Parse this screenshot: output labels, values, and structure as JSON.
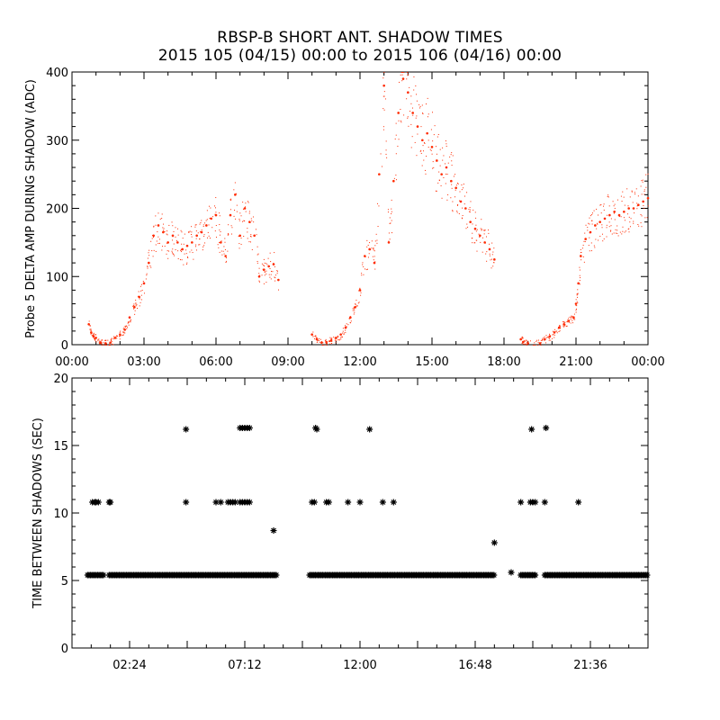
{
  "title": "RBSP-B SHORT ANT. SHADOW TIMES",
  "subtitle": "2015 105 (04/15) 00:00 to 2015 106 (04/16) 00:00",
  "colors": {
    "upper_points": "#ff2a00",
    "lower_points": "#000000"
  },
  "chart_data": [
    {
      "type": "scatter",
      "ylabel": "Probe 5 DELTA AMP DURING SHADOW (ADC)",
      "xlabel": "",
      "x_unit": "hours",
      "xlim": [
        0,
        24
      ],
      "ylim": [
        0,
        400
      ],
      "xtick_labels": [
        "00:00",
        "03:00",
        "06:00",
        "09:00",
        "12:00",
        "15:00",
        "18:00",
        "21:00",
        "00:00"
      ],
      "ytick_labels": [
        "0",
        "100",
        "200",
        "300",
        "400"
      ],
      "series": [
        {
          "points": [
            [
              0.7,
              30
            ],
            [
              0.8,
              18
            ],
            [
              0.9,
              12
            ],
            [
              1.0,
              10
            ],
            [
              1.2,
              3
            ],
            [
              1.4,
              2
            ],
            [
              1.6,
              3
            ],
            [
              1.8,
              10
            ],
            [
              2.0,
              15
            ],
            [
              2.2,
              22
            ],
            [
              2.4,
              40
            ],
            [
              2.6,
              55
            ],
            [
              2.8,
              70
            ],
            [
              3.0,
              90
            ],
            [
              3.2,
              120
            ],
            [
              3.4,
              160
            ],
            [
              3.6,
              175
            ],
            [
              3.8,
              165
            ],
            [
              4.0,
              150
            ],
            [
              4.2,
              160
            ],
            [
              4.4,
              150
            ],
            [
              4.6,
              140
            ],
            [
              4.8,
              145
            ],
            [
              5.0,
              150
            ],
            [
              5.2,
              160
            ],
            [
              5.4,
              165
            ],
            [
              5.6,
              175
            ],
            [
              5.8,
              185
            ],
            [
              6.0,
              190
            ],
            [
              6.2,
              150
            ],
            [
              6.4,
              130
            ],
            [
              6.6,
              190
            ],
            [
              6.8,
              220
            ],
            [
              7.0,
              160
            ],
            [
              7.2,
              200
            ],
            [
              7.4,
              180
            ],
            [
              7.6,
              160
            ],
            [
              7.8,
              100
            ],
            [
              8.0,
              110
            ],
            [
              8.2,
              115
            ],
            [
              8.4,
              118
            ],
            [
              8.6,
              95
            ],
            [
              10.0,
              15
            ],
            [
              10.2,
              8
            ],
            [
              10.4,
              3
            ],
            [
              10.6,
              4
            ],
            [
              10.8,
              6
            ],
            [
              11.0,
              10
            ],
            [
              11.2,
              15
            ],
            [
              11.4,
              25
            ],
            [
              11.6,
              40
            ],
            [
              11.8,
              55
            ],
            [
              12.0,
              80
            ],
            [
              12.2,
              130
            ],
            [
              12.4,
              140
            ],
            [
              12.6,
              120
            ],
            [
              12.8,
              250
            ],
            [
              13.0,
              380
            ],
            [
              13.2,
              150
            ],
            [
              13.4,
              240
            ],
            [
              13.6,
              340
            ],
            [
              13.8,
              390
            ],
            [
              14.0,
              370
            ],
            [
              14.2,
              340
            ],
            [
              14.4,
              320
            ],
            [
              14.6,
              300
            ],
            [
              14.8,
              310
            ],
            [
              15.0,
              290
            ],
            [
              15.2,
              270
            ],
            [
              15.4,
              250
            ],
            [
              15.6,
              260
            ],
            [
              15.8,
              240
            ],
            [
              16.0,
              230
            ],
            [
              16.2,
              210
            ],
            [
              16.4,
              200
            ],
            [
              16.6,
              180
            ],
            [
              16.8,
              170
            ],
            [
              17.0,
              160
            ],
            [
              17.2,
              150
            ],
            [
              17.4,
              140
            ],
            [
              17.6,
              125
            ],
            [
              18.7,
              8
            ],
            [
              18.8,
              4
            ],
            [
              19.0,
              2
            ],
            [
              19.5,
              2
            ],
            [
              19.7,
              8
            ],
            [
              19.9,
              12
            ],
            [
              20.1,
              18
            ],
            [
              20.3,
              25
            ],
            [
              20.5,
              30
            ],
            [
              20.7,
              35
            ],
            [
              20.9,
              40
            ],
            [
              21.0,
              60
            ],
            [
              21.1,
              90
            ],
            [
              21.2,
              130
            ],
            [
              21.4,
              155
            ],
            [
              21.6,
              165
            ],
            [
              21.8,
              175
            ],
            [
              22.0,
              180
            ],
            [
              22.2,
              185
            ],
            [
              22.4,
              190
            ],
            [
              22.6,
              195
            ],
            [
              22.8,
              190
            ],
            [
              23.0,
              195
            ],
            [
              23.2,
              200
            ],
            [
              23.4,
              200
            ],
            [
              23.6,
              205
            ],
            [
              23.8,
              210
            ],
            [
              24.0,
              215
            ]
          ]
        }
      ]
    },
    {
      "type": "scatter",
      "ylabel": "TIME BETWEEN SHADOWS (SEC)",
      "xlabel": "",
      "x_unit": "hours",
      "xlim": [
        0,
        24
      ],
      "ylim": [
        0,
        20
      ],
      "xtick_labels": [
        "02:24",
        "07:12",
        "12:00",
        "16:48",
        "21:36"
      ],
      "ytick_labels": [
        "0",
        "5",
        "10",
        "15",
        "20"
      ],
      "series": [
        {
          "marker": "asterisk",
          "points": [
            [
              0.85,
              10.8
            ],
            [
              0.95,
              10.8
            ],
            [
              1.0,
              10.8
            ],
            [
              1.1,
              10.8
            ],
            [
              1.55,
              10.8
            ],
            [
              1.6,
              10.8
            ],
            [
              4.75,
              16.2
            ],
            [
              4.75,
              10.8
            ],
            [
              6.0,
              10.8
            ],
            [
              6.2,
              10.8
            ],
            [
              6.5,
              10.8
            ],
            [
              6.6,
              10.8
            ],
            [
              6.7,
              10.8
            ],
            [
              6.8,
              10.8
            ],
            [
              7.0,
              10.8
            ],
            [
              7.1,
              10.8
            ],
            [
              7.2,
              10.8
            ],
            [
              7.3,
              10.8
            ],
            [
              7.4,
              10.8
            ],
            [
              7.0,
              16.3
            ],
            [
              7.1,
              16.3
            ],
            [
              7.2,
              16.3
            ],
            [
              7.3,
              16.3
            ],
            [
              7.4,
              16.3
            ],
            [
              8.4,
              8.7
            ],
            [
              10.0,
              10.8
            ],
            [
              10.1,
              10.8
            ],
            [
              10.15,
              16.3
            ],
            [
              10.2,
              16.2
            ],
            [
              10.6,
              10.8
            ],
            [
              10.7,
              10.8
            ],
            [
              11.5,
              10.8
            ],
            [
              12.0,
              10.8
            ],
            [
              12.4,
              16.2
            ],
            [
              12.95,
              10.8
            ],
            [
              13.4,
              10.8
            ],
            [
              17.6,
              7.8
            ],
            [
              18.3,
              5.6
            ],
            [
              18.7,
              10.8
            ],
            [
              19.1,
              10.8
            ],
            [
              19.15,
              16.2
            ],
            [
              19.2,
              10.8
            ],
            [
              19.3,
              10.8
            ],
            [
              19.7,
              10.8
            ],
            [
              19.75,
              16.3
            ],
            [
              21.1,
              10.8
            ]
          ],
          "baseline": {
            "y": 5.4,
            "segments": [
              [
                0.65,
                1.35
              ],
              [
                1.55,
                8.55
              ],
              [
                9.9,
                17.6
              ],
              [
                18.7,
                19.3
              ],
              [
                19.7,
                24.0
              ]
            ]
          }
        }
      ]
    }
  ]
}
